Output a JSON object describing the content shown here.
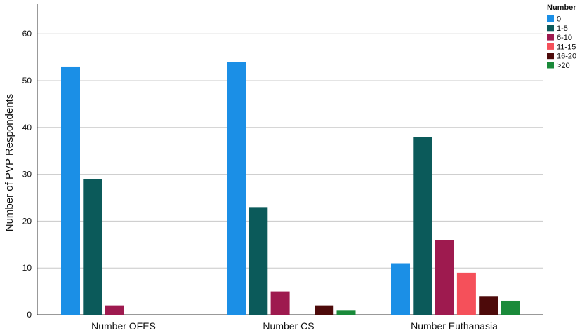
{
  "chart_data": {
    "type": "bar",
    "ylabel": "Number of PVP Respondents",
    "xlabel": "",
    "ylim": [
      0,
      65
    ],
    "yticks": [
      0,
      10,
      20,
      30,
      40,
      50,
      60
    ],
    "grid": "horizontal",
    "legend_placement": "top-right",
    "legend_title": "Number",
    "categories": [
      "Number OFES",
      "Number CS",
      "Number Euthanasia"
    ],
    "series": [
      {
        "name": "0",
        "color": "#1b8fe6",
        "values": [
          53,
          54,
          11
        ]
      },
      {
        "name": "1-5",
        "color": "#0b5a5a",
        "values": [
          29,
          23,
          38
        ]
      },
      {
        "name": "6-10",
        "color": "#9e1a4f",
        "values": [
          2,
          5,
          16
        ]
      },
      {
        "name": "11-15",
        "color": "#f5505a",
        "values": [
          0,
          0,
          9
        ]
      },
      {
        "name": "16-20",
        "color": "#4d0a0a",
        "values": [
          0,
          2,
          4
        ]
      },
      {
        "name": ">20",
        "color": "#1a8a3a",
        "values": [
          0,
          1,
          3
        ]
      }
    ]
  }
}
